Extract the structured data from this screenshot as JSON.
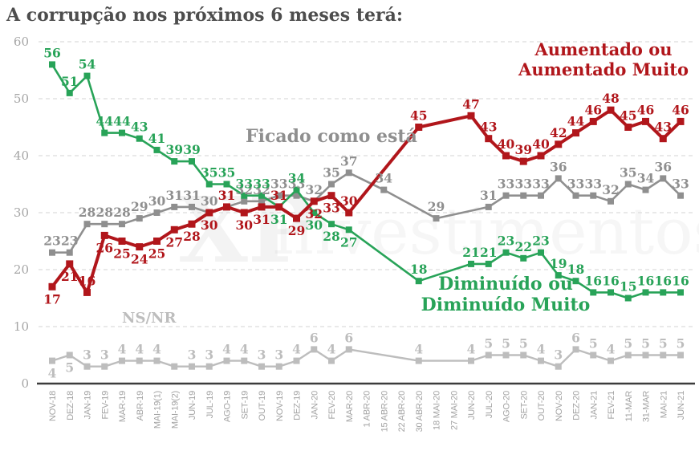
{
  "title": "A corrupção nos próximos 6 meses terá:",
  "watermark": "XP investimentos",
  "colors": {
    "aumentado": "#b1161b",
    "ficado": "#8f8f8f",
    "diminuido": "#28a358",
    "nsnr": "#bdbdbd",
    "title_text": "#4d4d4d",
    "axis_labels": "#a5a5a5",
    "grid": "#dcdcdc",
    "axis_line": "#3c3c3c"
  },
  "annotations": {
    "aumentado": {
      "lines": [
        "Aumentado ou",
        "Aumentado Muito"
      ]
    },
    "ficado": "Ficado como está",
    "diminuido": {
      "lines": [
        "Diminuído ou",
        "Diminuído Muito"
      ]
    },
    "nsnr": "NS/NR",
    "watermark_xp": "XP",
    "watermark_rest": "investimentos"
  },
  "chart_data": {
    "type": "line",
    "title": "A corrupção nos próximos 6 meses terá:",
    "xlabel": "",
    "ylabel": "",
    "ylim": [
      0,
      60
    ],
    "yticks": [
      0,
      10,
      20,
      30,
      40,
      50,
      60
    ],
    "grid": "horizontal-dashed",
    "legend_position": "inline-annotations",
    "x_labels": [
      "NOV-18",
      "DEZ-18",
      "JAN-19",
      "FEV-19",
      "MAR-19",
      "ABR-19",
      "MAI-19(1)",
      "MAI-19(2)",
      "JUN-19",
      "JUL-19",
      "AGO-19",
      "SET-19",
      "OUT-19",
      "NOV-19",
      "DEZ-19",
      "JAN-20",
      "FEV-20",
      "MAR-20",
      "1 ABR-20",
      "15 ABR-20",
      "22 ABR-20",
      "30 ABR-20",
      "18 MAI-20",
      "27 MAI-20",
      "JUN-20",
      "JUL-20",
      "AGO-20",
      "SET-20",
      "OUT-20",
      "NOV-20",
      "DEZ-20",
      "JAN-21",
      "FEV-21",
      "11-MAR",
      "31-MAR",
      "MAI-21",
      "JUN-21"
    ],
    "series": [
      {
        "name": "Aumentado ou Aumentado Muito",
        "color": "#b1161b",
        "values": [
          17,
          21,
          16,
          26,
          25,
          24,
          25,
          27,
          28,
          30,
          31,
          30,
          31,
          31,
          29,
          32,
          33,
          30,
          null,
          null,
          null,
          45,
          null,
          null,
          47,
          43,
          40,
          39,
          40,
          42,
          44,
          46,
          48,
          45,
          46,
          43,
          46
        ]
      },
      {
        "name": "Ficado como está",
        "color": "#8f8f8f",
        "values": [
          23,
          23,
          28,
          28,
          28,
          29,
          30,
          31,
          31,
          30,
          31,
          32,
          32,
          33,
          33,
          32,
          35,
          37,
          null,
          34,
          null,
          null,
          29,
          null,
          null,
          31,
          33,
          33,
          33,
          36,
          33,
          33,
          32,
          35,
          34,
          36,
          33
        ]
      },
      {
        "name": "Diminuído ou Diminuído Muito",
        "color": "#28a358",
        "values": [
          56,
          51,
          54,
          44,
          44,
          43,
          41,
          39,
          39,
          35,
          35,
          33,
          33,
          31,
          34,
          30,
          28,
          27,
          null,
          null,
          null,
          18,
          null,
          null,
          21,
          21,
          23,
          22,
          23,
          19,
          18,
          16,
          16,
          15,
          16,
          16,
          16
        ]
      },
      {
        "name": "NS/NR",
        "color": "#bdbdbd",
        "values": [
          4,
          5,
          3,
          3,
          4,
          4,
          4,
          3,
          3,
          3,
          4,
          4,
          3,
          3,
          4,
          6,
          4,
          6,
          null,
          null,
          null,
          4,
          null,
          null,
          4,
          5,
          5,
          5,
          4,
          3,
          6,
          5,
          4,
          5,
          5,
          5,
          5
        ]
      }
    ]
  }
}
